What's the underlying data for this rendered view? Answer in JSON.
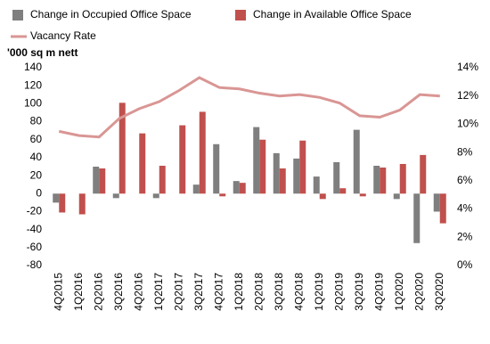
{
  "chart_data": {
    "type": "bar",
    "y_axis_label": "'000 sq m nett",
    "categories": [
      "4Q2015",
      "1Q2016",
      "2Q2016",
      "3Q2016",
      "4Q2016",
      "1Q2017",
      "2Q2017",
      "3Q2017",
      "4Q2017",
      "1Q2018",
      "2Q2018",
      "3Q2018",
      "4Q2018",
      "1Q2019",
      "2Q2019",
      "3Q2019",
      "4Q2019",
      "1Q2020",
      "2Q2020",
      "3Q2020"
    ],
    "series": [
      {
        "name": "Change in Occupied Office Space",
        "color": "#7f7f7f",
        "values": [
          -10,
          0,
          30,
          -5,
          0,
          -5,
          0,
          10,
          55,
          14,
          74,
          45,
          39,
          19,
          35,
          71,
          31,
          -6,
          -55,
          -20
        ]
      },
      {
        "name": "Change in Available Office Space",
        "color": "#c0504d",
        "values": [
          -21,
          -23,
          28,
          101,
          67,
          31,
          76,
          91,
          -3,
          12,
          60,
          28,
          59,
          -6,
          6,
          -3,
          29,
          33,
          43,
          -33
        ]
      },
      {
        "name": "Vacancy Rate",
        "color": "#d99694",
        "axis": "y2",
        "type": "line",
        "values": [
          9.5,
          9.2,
          9.1,
          10.4,
          11.1,
          11.6,
          12.4,
          13.3,
          12.6,
          12.5,
          12.2,
          12.0,
          12.1,
          11.9,
          11.5,
          10.6,
          10.5,
          11.0,
          12.1,
          12.0
        ]
      }
    ],
    "ylim": [
      -80,
      140
    ],
    "yticks": [
      -80,
      -60,
      -40,
      -20,
      0,
      20,
      40,
      60,
      80,
      100,
      120,
      140
    ],
    "y2lim": [
      0,
      14
    ],
    "y2ticks": [
      {
        "value": 0,
        "label": "0%"
      },
      {
        "value": 2,
        "label": "2%"
      },
      {
        "value": 4,
        "label": "4%"
      },
      {
        "value": 6,
        "label": "6%"
      },
      {
        "value": 8,
        "label": "8%"
      },
      {
        "value": 10,
        "label": "10%"
      },
      {
        "value": 12,
        "label": "12%"
      },
      {
        "value": 14,
        "label": "14%"
      }
    ]
  }
}
